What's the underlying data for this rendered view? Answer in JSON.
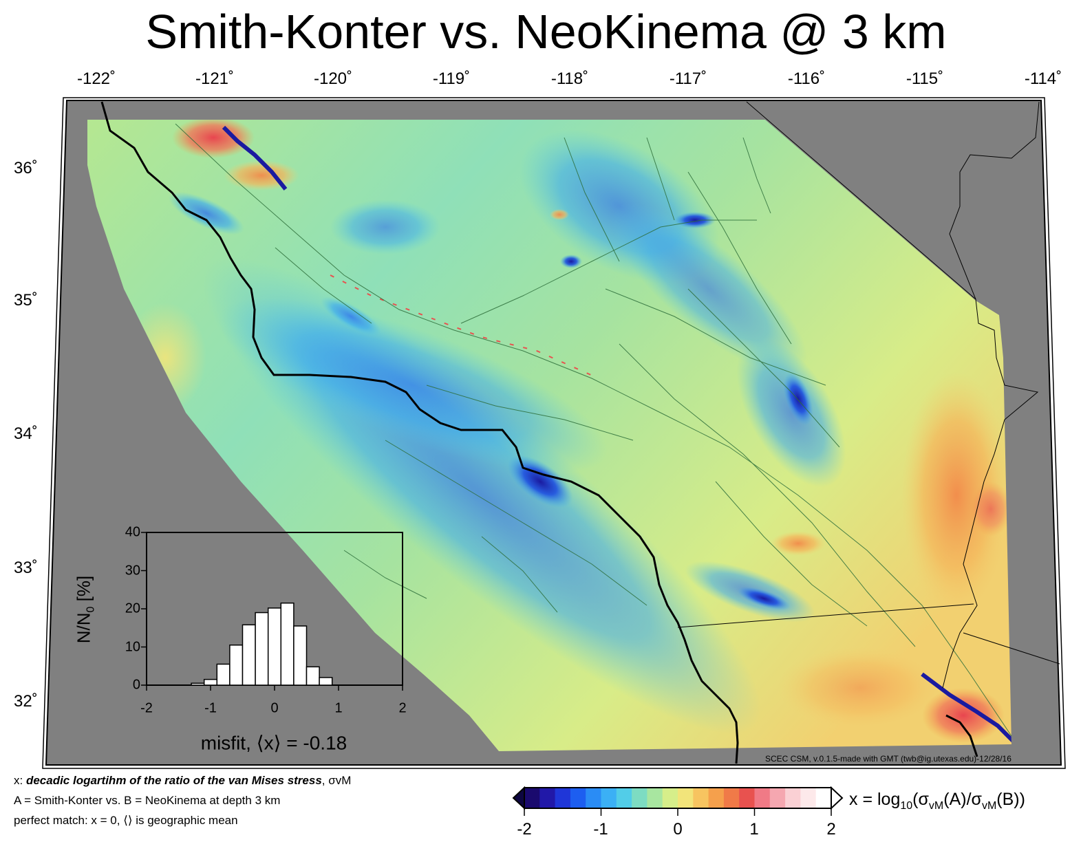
{
  "title": "Smith-Konter vs. NeoKinema @ 3 km",
  "map": {
    "lon_labels": [
      "-122˚",
      "-121˚",
      "-120˚",
      "-119˚",
      "-118˚",
      "-117˚",
      "-116˚",
      "-115˚",
      "-114˚"
    ],
    "lat_labels": [
      "36˚",
      "35˚",
      "34˚",
      "33˚",
      "32˚"
    ],
    "background_color": "#808080"
  },
  "histogram": {
    "ylabel": "N/N0 [%]",
    "ytick_labels": [
      "40",
      "30",
      "20",
      "10",
      "0"
    ],
    "xtick_labels": [
      "-2",
      "-1",
      "0",
      "1",
      "2"
    ],
    "misfit_label": "misfit, ⟨x⟩ = -0.18",
    "bin_edges": [
      -1.3,
      -1.1,
      -0.9,
      -0.7,
      -0.5,
      -0.3,
      -0.1,
      0.1,
      0.3,
      0.5,
      0.7,
      0.9
    ],
    "values": [
      0.5,
      1.5,
      5.5,
      10.5,
      15.8,
      19,
      20.2,
      21.5,
      15.5,
      4.8,
      2,
      0.5
    ],
    "ylim": [
      0,
      40
    ],
    "xlim": [
      -2,
      2
    ]
  },
  "captions": {
    "line1_prefix": "x: ",
    "line1_bold": "decadic logartihm of the ratio of the van Mises stress",
    "line1_suffix": ", σvM",
    "line2": "A = Smith-Konter vs.  B = NeoKinema at depth 3 km",
    "line3": "perfect match: x = 0, ⟨⟩ is geographic mean"
  },
  "credit": "SCEC CSM, v.0.1.5-made with GMT (twb@ig.utexas.edu)-12/28/16",
  "colorbar": {
    "tick_labels": [
      "-2",
      "-1",
      "0",
      "1",
      "2"
    ],
    "formula": "x = log10(σvM(A)/σvM(B))",
    "colors": [
      "#1a0a6e",
      "#2118a8",
      "#1f36d8",
      "#1d5ef0",
      "#2a8cf5",
      "#3bb0f5",
      "#52cde8",
      "#7ddcc2",
      "#a8e6a0",
      "#d6ee8a",
      "#f2e47a",
      "#f7c460",
      "#f5a04c",
      "#f07a48",
      "#e8524f",
      "#f07a86",
      "#f5a7b0",
      "#fad0d4",
      "#fde9ea",
      "#ffffff"
    ]
  }
}
